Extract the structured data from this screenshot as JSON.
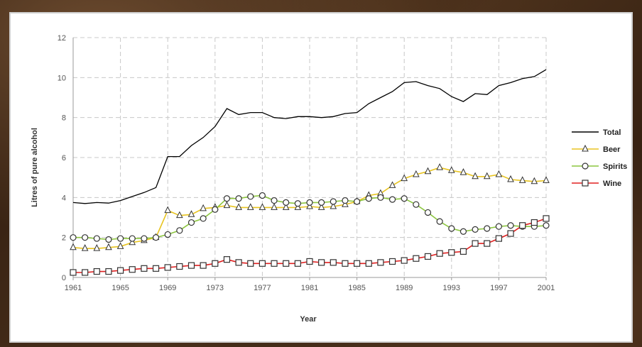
{
  "chart_data": {
    "type": "line",
    "title": "",
    "xlabel": "Year",
    "ylabel": "Litres of pure alcohol",
    "xlim": [
      1961,
      2001
    ],
    "ylim": [
      0,
      12
    ],
    "xticks": [
      "1961",
      "1965",
      "1969",
      "1973",
      "1977",
      "1981",
      "1985",
      "1989",
      "1993",
      "1997",
      "2001"
    ],
    "yticks": [
      "0",
      "2",
      "4",
      "6",
      "8",
      "10",
      "12"
    ],
    "grid": true,
    "legend_position": "right",
    "x": [
      1961,
      1962,
      1963,
      1964,
      1965,
      1966,
      1967,
      1968,
      1969,
      1970,
      1971,
      1972,
      1973,
      1974,
      1975,
      1976,
      1977,
      1978,
      1979,
      1980,
      1981,
      1982,
      1983,
      1984,
      1985,
      1986,
      1987,
      1988,
      1989,
      1990,
      1991,
      1992,
      1993,
      1994,
      1995,
      1996,
      1997,
      1998,
      1999,
      2000,
      2001
    ],
    "series": [
      {
        "name": "Total",
        "color": "#000000",
        "marker": "none",
        "values": [
          3.75,
          3.7,
          3.75,
          3.72,
          3.85,
          4.05,
          4.25,
          4.5,
          6.05,
          6.05,
          6.6,
          7.0,
          7.55,
          8.45,
          8.15,
          8.25,
          8.25,
          8.0,
          7.95,
          8.05,
          8.05,
          8.0,
          8.05,
          8.2,
          8.25,
          8.7,
          9.0,
          9.3,
          9.75,
          9.8,
          9.6,
          9.45,
          9.05,
          8.8,
          9.2,
          9.15,
          9.6,
          9.75,
          9.95,
          10.05,
          10.4
        ]
      },
      {
        "name": "Beer",
        "color": "#e8c420",
        "marker": "triangle",
        "values": [
          1.5,
          1.45,
          1.45,
          1.5,
          1.55,
          1.75,
          1.85,
          2.0,
          3.35,
          3.1,
          3.15,
          3.45,
          3.5,
          3.6,
          3.5,
          3.5,
          3.5,
          3.5,
          3.5,
          3.5,
          3.55,
          3.5,
          3.55,
          3.65,
          3.8,
          4.1,
          4.2,
          4.6,
          4.95,
          5.15,
          5.3,
          5.5,
          5.35,
          5.25,
          5.05,
          5.05,
          5.15,
          4.9,
          4.85,
          4.8,
          4.85
        ]
      },
      {
        "name": "Spirits",
        "color": "#8cc63f",
        "marker": "circle",
        "values": [
          2.0,
          2.0,
          1.95,
          1.9,
          1.95,
          1.95,
          1.95,
          2.0,
          2.15,
          2.35,
          2.75,
          2.95,
          3.4,
          3.95,
          3.95,
          4.05,
          4.1,
          3.85,
          3.75,
          3.7,
          3.75,
          3.75,
          3.8,
          3.85,
          3.8,
          3.95,
          4.0,
          3.9,
          3.95,
          3.65,
          3.25,
          2.8,
          2.45,
          2.3,
          2.4,
          2.45,
          2.55,
          2.6,
          2.55,
          2.55,
          2.6
        ]
      },
      {
        "name": "Wine",
        "color": "#e02020",
        "marker": "square",
        "values": [
          0.25,
          0.25,
          0.3,
          0.3,
          0.35,
          0.4,
          0.45,
          0.45,
          0.5,
          0.55,
          0.6,
          0.6,
          0.7,
          0.9,
          0.75,
          0.7,
          0.7,
          0.7,
          0.7,
          0.7,
          0.8,
          0.75,
          0.75,
          0.7,
          0.7,
          0.7,
          0.75,
          0.8,
          0.85,
          0.95,
          1.05,
          1.2,
          1.25,
          1.3,
          1.7,
          1.7,
          1.95,
          2.2,
          2.6,
          2.75,
          2.95
        ]
      }
    ]
  }
}
